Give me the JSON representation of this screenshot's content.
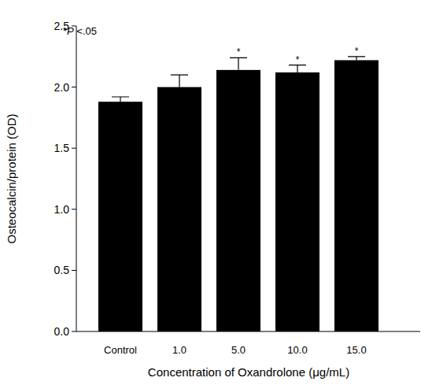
{
  "chart_data": {
    "type": "bar",
    "x_label": "Concentration of Oxandrolone (μg/mL)",
    "y_label": "Osteocalcin/protein (OD)",
    "annotation": "*P <.05",
    "categories": [
      "Control",
      "1.0",
      "5.0",
      "10.0",
      "15.0"
    ],
    "values": [
      1.88,
      2.0,
      2.14,
      2.12,
      2.22
    ],
    "errors": [
      0.04,
      0.1,
      0.1,
      0.06,
      0.03
    ],
    "significance": [
      null,
      null,
      "*",
      "*",
      "*"
    ],
    "color": "#000000",
    "ylim": [
      0,
      2.5
    ],
    "yticks": [
      {
        "value": 0,
        "label": "0.0"
      },
      0.5,
      {
        "value": 1,
        "label": "1.0"
      },
      1.5,
      {
        "value": 2,
        "label": "2.0"
      },
      2.5
    ],
    "grid": false
  }
}
